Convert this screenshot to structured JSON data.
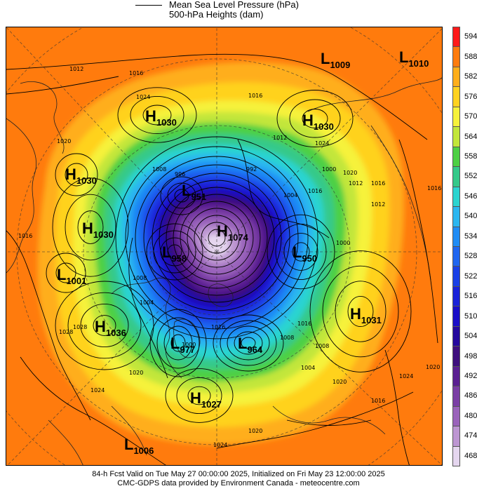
{
  "legend": {
    "title": "Mean Sea Level Pressure (hPa)",
    "subtitle": "500-hPa Heights (dam)"
  },
  "footer": {
    "line1": "84-h Fcst Valid on Tue May 27 00:00:00 2025, Initialized on Fri May 23 12:00:00 2025",
    "line2": "CMC-GDPS data provided by Environment Canada - meteocentre.com"
  },
  "colorbar": [
    {
      "label": "594",
      "color": "#ff1a1a"
    },
    {
      "label": "588",
      "color": "#ff7b0d"
    },
    {
      "label": "582",
      "color": "#ffae1a"
    },
    {
      "label": "576",
      "color": "#ffd21f"
    },
    {
      "label": "570",
      "color": "#f6f23a"
    },
    {
      "label": "564",
      "color": "#c2e63a"
    },
    {
      "label": "558",
      "color": "#4dd044"
    },
    {
      "label": "552",
      "color": "#34c98a"
    },
    {
      "label": "546",
      "color": "#2bd4d0"
    },
    {
      "label": "540",
      "color": "#2bb6f0"
    },
    {
      "label": "534",
      "color": "#1f8cf5"
    },
    {
      "label": "528",
      "color": "#1f66f0"
    },
    {
      "label": "522",
      "color": "#1a40e6"
    },
    {
      "label": "516",
      "color": "#1a22d9"
    },
    {
      "label": "510",
      "color": "#1a0ec8"
    },
    {
      "label": "504",
      "color": "#24089e"
    },
    {
      "label": "498",
      "color": "#3e0f7e"
    },
    {
      "label": "492",
      "color": "#5a1f92"
    },
    {
      "label": "486",
      "color": "#7a3ea5"
    },
    {
      "label": "480",
      "color": "#9a63bb"
    },
    {
      "label": "474",
      "color": "#bd96d2"
    },
    {
      "label": "468",
      "color": "#e5d6ef"
    }
  ],
  "pressure_centers": [
    {
      "type": "L",
      "value": "1009"
    },
    {
      "type": "L",
      "value": "1010"
    },
    {
      "type": "H",
      "value": "1030"
    },
    {
      "type": "H",
      "value": "1030"
    },
    {
      "type": "H",
      "value": "1030"
    },
    {
      "type": "L",
      "value": "951"
    },
    {
      "type": "H",
      "value": "1030"
    },
    {
      "type": "H",
      "value": "1074"
    },
    {
      "type": "L",
      "value": "958"
    },
    {
      "type": "L",
      "value": "950"
    },
    {
      "type": "L",
      "value": "1001"
    },
    {
      "type": "H",
      "value": "1031"
    },
    {
      "type": "H",
      "value": "1036"
    },
    {
      "type": "L",
      "value": "977"
    },
    {
      "type": "L",
      "value": "964"
    },
    {
      "type": "H",
      "value": "1027"
    },
    {
      "type": "L",
      "value": "1006"
    }
  ],
  "isobar_labels": [
    "1012",
    "1016",
    "1024",
    "1016",
    "1020",
    "1012",
    "1008",
    "996",
    "992",
    "1000",
    "1004",
    "1016",
    "1020",
    "1016",
    "1012",
    "1016",
    "1008",
    "1004",
    "1000",
    "1016",
    "1028",
    "1020",
    "1024",
    "1020",
    "1024",
    "1008",
    "1016",
    "1004",
    "1008",
    "1024",
    "1028",
    "1020",
    "1016",
    "1012",
    "1000",
    "1024",
    "1020",
    "1016"
  ]
}
